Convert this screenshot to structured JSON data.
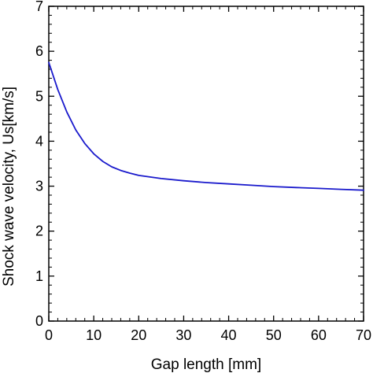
{
  "chart_data": {
    "type": "line",
    "title": "",
    "xlabel": "Gap length [mm]",
    "ylabel": "Shock wave velocity, Us[km/s]",
    "xlim": [
      0,
      70
    ],
    "ylim": [
      0,
      7
    ],
    "xticks": [
      "0",
      "10",
      "20",
      "30",
      "40",
      "50",
      "60",
      "70"
    ],
    "yticks": [
      "0",
      "1",
      "2",
      "3",
      "4",
      "5",
      "6",
      "7"
    ],
    "grid": false,
    "legend": "none",
    "series": [
      {
        "color": "#1a1acc",
        "x": [
          0,
          2,
          4,
          6,
          8,
          10,
          12,
          14,
          16,
          18,
          20,
          25,
          30,
          35,
          40,
          45,
          50,
          55,
          60,
          65,
          70
        ],
        "y": [
          5.75,
          5.15,
          4.65,
          4.25,
          3.95,
          3.72,
          3.55,
          3.43,
          3.35,
          3.29,
          3.24,
          3.17,
          3.12,
          3.08,
          3.05,
          3.02,
          2.99,
          2.97,
          2.95,
          2.93,
          2.91
        ]
      }
    ]
  }
}
